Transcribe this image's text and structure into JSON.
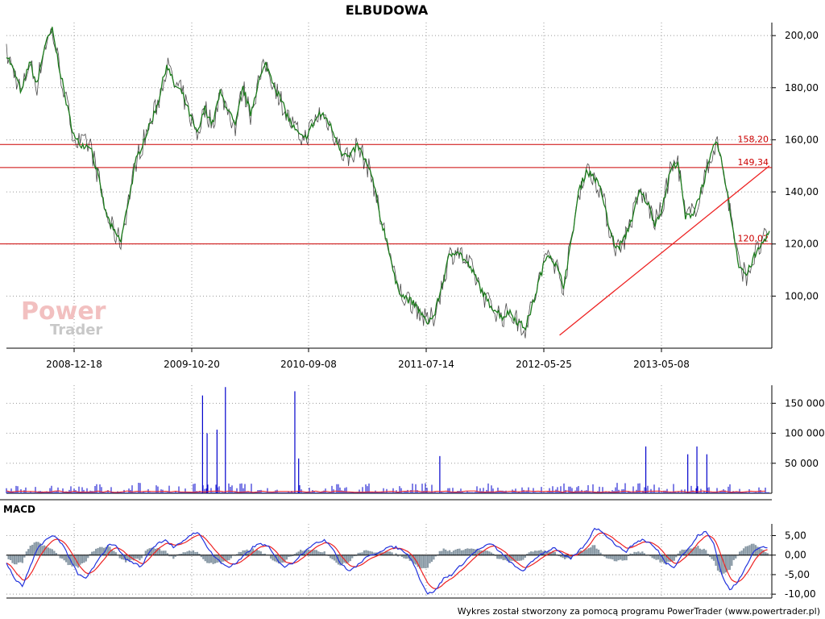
{
  "title": "ELBUDOWA",
  "footer": "Wykres został stworzony za pomocą programu PowerTrader (www.powertrader.pl)",
  "watermark": {
    "line1": "Power",
    "line2": "Trader"
  },
  "colors": {
    "price": "#1a7a1a",
    "wick": "#000000",
    "level": "#cc0000",
    "volume": "#0000cc",
    "volume_avg": "#ee2222",
    "macd": "#2233dd",
    "signal": "#ee2222",
    "histogram": "#8a9aa6"
  },
  "chart_data": [
    {
      "type": "line",
      "panel": "price",
      "title": "ELBUDOWA",
      "x_ticks": [
        "2008-12-18",
        "2009-10-20",
        "2010-09-08",
        "2011-07-14",
        "2012-05-25",
        "2013-05-08"
      ],
      "y_ticks": [
        "100,00",
        "120,00",
        "140,00",
        "160,00",
        "180,00",
        "200,00"
      ],
      "ylim": [
        80,
        205
      ],
      "grid": true,
      "series": [
        {
          "values": [
            193,
            186,
            178,
            190,
            181,
            196,
            202,
            187,
            172,
            160,
            158,
            158,
            146,
            132,
            125,
            121,
            137,
            152,
            160,
            167,
            176,
            189,
            181,
            178,
            170,
            162,
            172,
            166,
            178,
            172,
            165,
            180,
            170,
            182,
            189,
            182,
            175,
            168,
            163,
            160,
            165,
            170,
            168,
            162,
            155,
            153,
            158,
            152,
            145,
            130,
            120,
            105,
            100,
            98,
            95,
            90,
            92,
            103,
            115,
            118,
            114,
            110,
            104,
            98,
            95,
            92,
            94,
            90,
            88,
            97,
            108,
            117,
            112,
            104,
            120,
            140,
            148,
            146,
            140,
            126,
            118,
            122,
            130,
            140,
            136,
            128,
            134,
            148,
            152,
            130,
            132,
            140,
            150,
            160,
            148,
            130,
            112,
            108,
            115,
            120,
            125
          ]
        }
      ],
      "levels": [
        {
          "label": "158,20",
          "value": 158.2
        },
        {
          "label": "149,34",
          "value": 149.34
        },
        {
          "label": "120,02",
          "value": 120.02
        }
      ],
      "trendline": {
        "from": [
          0.725,
          85
        ],
        "to": [
          1.0,
          150
        ]
      }
    },
    {
      "type": "bar",
      "panel": "volume",
      "y_ticks": [
        "50 000",
        "100 000",
        "150 000"
      ],
      "ylim": [
        0,
        180000
      ],
      "grid": true,
      "spikes": [
        {
          "x": 0.257,
          "value": 163000
        },
        {
          "x": 0.263,
          "value": 100000
        },
        {
          "x": 0.276,
          "value": 106000
        },
        {
          "x": 0.287,
          "value": 177000
        },
        {
          "x": 0.378,
          "value": 170000
        },
        {
          "x": 0.383,
          "value": 58000
        },
        {
          "x": 0.568,
          "value": 62000
        },
        {
          "x": 0.838,
          "value": 78000
        },
        {
          "x": 0.893,
          "value": 65000
        },
        {
          "x": 0.905,
          "value": 78000
        },
        {
          "x": 0.918,
          "value": 65000
        }
      ]
    },
    {
      "type": "line",
      "panel": "MACD",
      "title": "MACD",
      "y_ticks": [
        "5,00",
        "0,00",
        "-5,00",
        "-10,00"
      ],
      "ylim": [
        -11,
        8
      ],
      "grid": true,
      "series": [
        {
          "name": "MACD",
          "values": [
            -2,
            -6,
            -8,
            -3,
            2,
            4,
            5,
            3,
            -1,
            -5,
            -6,
            -3,
            0,
            3,
            2,
            -1,
            -2,
            -3,
            1,
            3,
            4,
            2,
            3,
            5,
            6,
            3,
            0,
            -2,
            -3,
            -2,
            0,
            2,
            3,
            2,
            -1,
            -3,
            -2,
            0,
            2,
            3,
            4,
            2,
            -2,
            -4,
            -3,
            -1,
            0,
            1,
            2,
            2,
            1,
            -1,
            -6,
            -10,
            -9,
            -6,
            -5,
            -3,
            -1,
            1,
            2,
            3,
            1,
            -1,
            -3,
            -4,
            -2,
            0,
            1,
            2,
            0,
            -1,
            1,
            3,
            7,
            6,
            4,
            2,
            1,
            3,
            4,
            3,
            1,
            -2,
            -3,
            0,
            2,
            5,
            6,
            3,
            -5,
            -9,
            -7,
            -3,
            1,
            2,
            2
          ]
        }
      ]
    }
  ]
}
